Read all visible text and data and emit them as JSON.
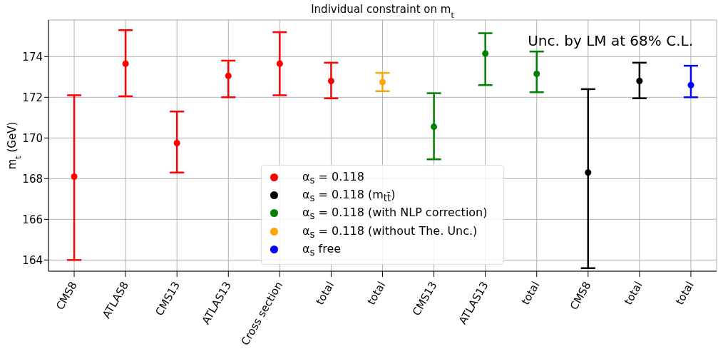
{
  "chart_data": {
    "type": "scatter",
    "title": "Individual constraint on m$_{t}$",
    "ylabel": "m$_{t}$ (GeV)",
    "categories": [
      "CMS8",
      "ATLAS8",
      "CMS13",
      "ATLAS13",
      "Cross section",
      "total",
      "total",
      "CMS13",
      "ATLAS13",
      "total",
      "CMS8",
      "total",
      "total"
    ],
    "series": [
      {
        "name": "α$_{s}$ = 0.118",
        "color": "#ff0000",
        "values": [
          168.1,
          173.65,
          169.75,
          173.05,
          173.65,
          172.8,
          null,
          null,
          null,
          null,
          null,
          null,
          null
        ],
        "errors": [
          [
            164.0,
            172.1
          ],
          [
            172.05,
            175.3
          ],
          [
            168.3,
            171.3
          ],
          [
            172.0,
            173.8
          ],
          [
            172.1,
            175.2
          ],
          [
            171.95,
            173.7
          ],
          null,
          null,
          null,
          null,
          null,
          null,
          null
        ]
      },
      {
        "name": "α$_{s}$ = 0.118 (without The. Unc.)",
        "color": "#ffa500",
        "values": [
          null,
          null,
          null,
          null,
          null,
          null,
          172.75,
          null,
          null,
          null,
          null,
          null,
          null
        ],
        "errors": [
          null,
          null,
          null,
          null,
          null,
          null,
          [
            172.3,
            173.2
          ],
          null,
          null,
          null,
          null,
          null,
          null
        ]
      },
      {
        "name": "α$_{s}$ = 0.118 (with NLP correction)",
        "color": "#008000",
        "values": [
          null,
          null,
          null,
          null,
          null,
          null,
          null,
          170.55,
          174.15,
          173.15,
          null,
          null,
          null
        ],
        "errors": [
          null,
          null,
          null,
          null,
          null,
          null,
          null,
          [
            168.95,
            172.2
          ],
          [
            172.6,
            175.15
          ],
          [
            172.25,
            174.25
          ],
          null,
          null,
          null
        ]
      },
      {
        "name": "α$_{s}$ = 0.118 (m$_{tt̄}$)",
        "color": "#000000",
        "values": [
          null,
          null,
          null,
          null,
          null,
          null,
          null,
          null,
          null,
          null,
          168.3,
          172.8,
          null
        ],
        "errors": [
          null,
          null,
          null,
          null,
          null,
          null,
          null,
          null,
          null,
          null,
          [
            163.6,
            172.4
          ],
          [
            171.95,
            173.7
          ],
          null
        ]
      },
      {
        "name": "α$_{s}$ free",
        "color": "#0000ff",
        "values": [
          null,
          null,
          null,
          null,
          null,
          null,
          null,
          null,
          null,
          null,
          null,
          null,
          172.6
        ],
        "errors": [
          null,
          null,
          null,
          null,
          null,
          null,
          null,
          null,
          null,
          null,
          null,
          null,
          [
            172.0,
            173.55
          ]
        ]
      }
    ],
    "ylim": [
      163.45,
      175.8
    ],
    "yticks": [
      164,
      166,
      168,
      170,
      172,
      174
    ],
    "grid": true,
    "legend": "bottom",
    "marker": "circle",
    "annotations": [
      "Unc. by LM at 68% C.L."
    ]
  }
}
